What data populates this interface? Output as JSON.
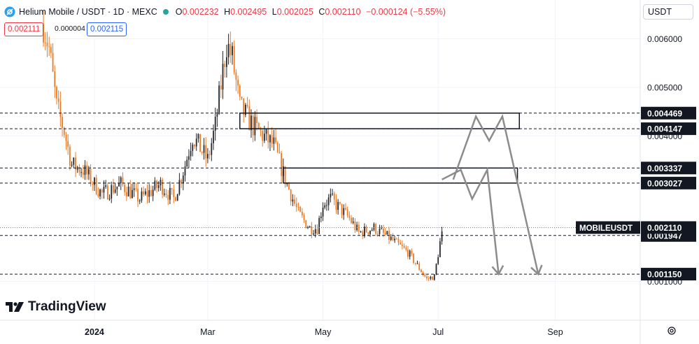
{
  "header": {
    "symbol": "Helium Mobile / USDT · 1D · MEXC",
    "open_label": "O",
    "open": "0.002232",
    "high_label": "H",
    "high": "0.002495",
    "low_label": "L",
    "low": "0.002025",
    "close_label": "C",
    "close": "0.002110",
    "change": "−0.000124 (−5.55%)"
  },
  "quote": {
    "bid": "0.002111",
    "spread": "0.000004",
    "ask": "0.002115"
  },
  "currency_selector": "USDT",
  "symbol_tag": "MOBILEUSDT",
  "brand": "TradingView",
  "colors": {
    "up": "#26a69a",
    "down": "#ef7a21",
    "candle_dark": "#26272b",
    "path": "#8c8c8c",
    "grid": "#f0f3fa"
  },
  "chart_data": {
    "type": "candlestick",
    "title": "",
    "y_axis_ticks": [
      {
        "label": "0.006000",
        "value": 0.006
      },
      {
        "label": "0.005000",
        "value": 0.005
      },
      {
        "label": "0.004000",
        "value": 0.004
      },
      {
        "label": "0.001000",
        "value": 0.001
      }
    ],
    "x_axis_ticks": [
      {
        "label": "2024",
        "date": "2024-01-01",
        "bold": true
      },
      {
        "label": "Mar",
        "date": "2024-03-01"
      },
      {
        "label": "May",
        "date": "2024-05-01"
      },
      {
        "label": "Jul",
        "date": "2024-07-01"
      },
      {
        "label": "Sep",
        "date": "2024-09-01"
      }
    ],
    "y_range": [
      0.0002,
      0.0068
    ],
    "x_range": [
      "2023-11-12",
      "2024-10-16"
    ],
    "price_lines": [
      {
        "label": "0.004469",
        "value": 0.004469
      },
      {
        "label": "0.004147",
        "value": 0.004147
      },
      {
        "label": "0.003337",
        "value": 0.003337
      },
      {
        "label": "0.003027",
        "value": 0.003027
      },
      {
        "label": "0.001947",
        "value": 0.001947
      },
      {
        "label": "0.001150",
        "value": 0.00115
      }
    ],
    "last_price": {
      "label": "0.002110",
      "value": 0.00211
    },
    "zones": [
      {
        "from": "2024-03-18",
        "to": "2024-08-13",
        "top": 0.004469,
        "bottom": 0.004147
      },
      {
        "from": "2024-04-10",
        "to": "2024-08-12",
        "top": 0.003337,
        "bottom": 0.003027
      }
    ],
    "projections": [
      {
        "points": [
          [
            "2024-07-03",
            0.0031
          ],
          [
            "2024-07-13",
            0.0033
          ],
          [
            "2024-07-19",
            0.0027
          ],
          [
            "2024-07-27",
            0.0033
          ],
          [
            "2024-08-02",
            0.00115
          ]
        ]
      },
      {
        "points": [
          [
            "2024-07-09",
            0.0031
          ],
          [
            "2024-07-21",
            0.0044
          ],
          [
            "2024-07-28",
            0.0039
          ],
          [
            "2024-08-04",
            0.0044
          ],
          [
            "2024-08-23",
            0.00115
          ]
        ]
      }
    ],
    "candles_anchor": [
      [
        "2023-12-05",
        0.0063
      ],
      [
        "2023-12-08",
        0.0058
      ],
      [
        "2023-12-12",
        0.0046
      ],
      [
        "2023-12-16",
        0.0041
      ],
      [
        "2023-12-20",
        0.0034
      ],
      [
        "2023-12-26",
        0.0033
      ],
      [
        "2024-01-05",
        0.0028
      ],
      [
        "2024-01-15",
        0.003
      ],
      [
        "2024-01-25",
        0.0027
      ],
      [
        "2024-02-05",
        0.003
      ],
      [
        "2024-02-12",
        0.0027
      ],
      [
        "2024-02-18",
        0.0034
      ],
      [
        "2024-02-22",
        0.004
      ],
      [
        "2024-03-01",
        0.0035
      ],
      [
        "2024-03-05",
        0.0042
      ],
      [
        "2024-03-11",
        0.0059
      ],
      [
        "2024-03-14",
        0.0056
      ],
      [
        "2024-03-18",
        0.0046
      ],
      [
        "2024-03-25",
        0.0042
      ],
      [
        "2024-04-05",
        0.0038
      ],
      [
        "2024-04-12",
        0.003
      ],
      [
        "2024-04-18",
        0.0024
      ],
      [
        "2024-04-24",
        0.0021
      ],
      [
        "2024-04-28",
        0.0021
      ],
      [
        "2024-05-01",
        0.0026
      ],
      [
        "2024-05-05",
        0.0027
      ],
      [
        "2024-05-15",
        0.0023
      ],
      [
        "2024-05-20",
        0.002
      ],
      [
        "2024-05-28",
        0.0021
      ],
      [
        "2024-06-05",
        0.0019
      ],
      [
        "2024-06-15",
        0.0016
      ],
      [
        "2024-06-25",
        0.00105
      ],
      [
        "2024-06-29",
        0.0011
      ],
      [
        "2024-07-02",
        0.0018
      ],
      [
        "2024-07-04",
        0.00211
      ]
    ]
  }
}
